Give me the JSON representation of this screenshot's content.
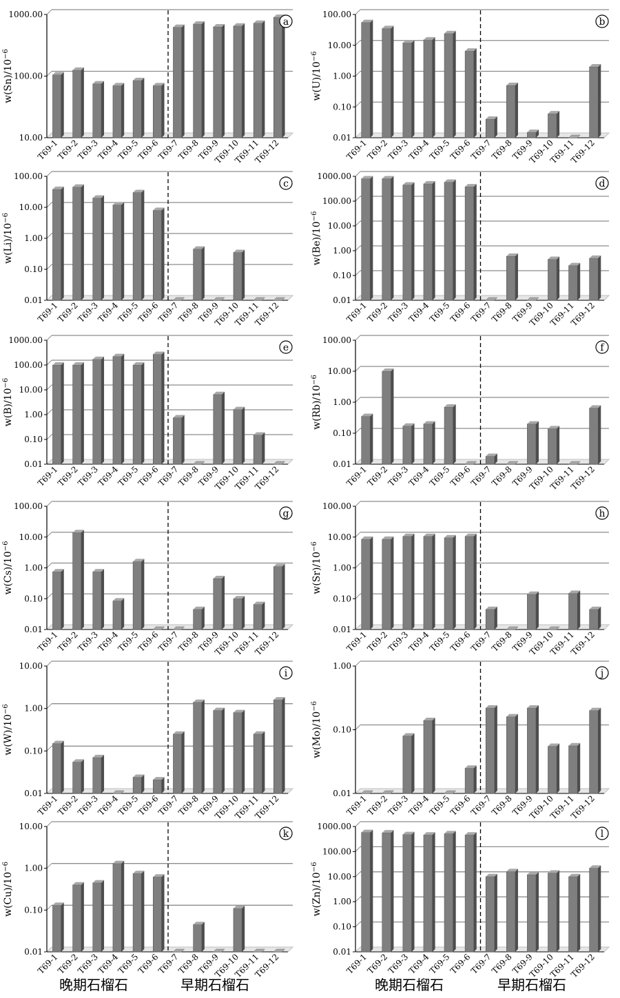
{
  "colors": {
    "bar_front": "#7f7f7f",
    "bar_side": "#4d4d4d",
    "bar_top": "#a8a8a8",
    "floor": "#bfbfbf",
    "gridline": "#8c8c8c",
    "axis": "#000000"
  },
  "footer": {
    "left_late": "晚期石榴石",
    "left_early": "早期石榴石",
    "right_late": "晚期石榴石",
    "right_early": "早期石榴石"
  },
  "chart_data": [
    {
      "type": "bar",
      "panel": "a",
      "ylabel": "w(Sn)/10^-6",
      "yscale": "log",
      "ylim": [
        10,
        1000
      ],
      "ytick_labels": [
        "10.00",
        "100.00",
        "1000.00"
      ],
      "grid": true,
      "categories": [
        "T69-1",
        "T69-2",
        "T69-3",
        "T69-4",
        "T69-5",
        "T69-6",
        "T69-7",
        "T69-8",
        "T69-9",
        "T69-10",
        "T69-11",
        "T69-12"
      ],
      "values": [
        105,
        125,
        75,
        70,
        85,
        70,
        620,
        700,
        630,
        650,
        720,
        900
      ],
      "divider_after": 6
    },
    {
      "type": "bar",
      "panel": "b",
      "ylabel": "w(U)/10^-6",
      "yscale": "log",
      "ylim": [
        0.01,
        100
      ],
      "ytick_labels": [
        "0.01",
        "0.10",
        "1.00",
        "10.00",
        "100.00"
      ],
      "grid": true,
      "categories": [
        "T69-1",
        "T69-2",
        "T69-3",
        "T69-4",
        "T69-5",
        "T69-6",
        "T69-7",
        "T69-8",
        "T69-9",
        "T69-10",
        "T69-11",
        "T69-12"
      ],
      "values": [
        55,
        35,
        12,
        15,
        24,
        6.5,
        0.04,
        0.5,
        0.015,
        0.06,
        0.01,
        2.0
      ],
      "divider_after": 6
    },
    {
      "type": "bar",
      "panel": "c",
      "ylabel": "w(Li)/10^-6",
      "yscale": "log",
      "ylim": [
        0.01,
        100
      ],
      "ytick_labels": [
        "0.01",
        "0.10",
        "1.00",
        "10.00",
        "100.00"
      ],
      "grid": true,
      "categories": [
        "T69-1",
        "T69-2",
        "T69-3",
        "T69-4",
        "T69-5",
        "T69-6",
        "T69-7",
        "T69-8",
        "T69-9",
        "T69-10",
        "T69-11",
        "T69-12"
      ],
      "values": [
        38,
        45,
        20,
        12,
        30,
        8,
        0.01,
        0.45,
        0.01,
        0.35,
        0.01,
        0.01
      ],
      "divider_after": 6
    },
    {
      "type": "bar",
      "panel": "d",
      "ylabel": "w(Be)/10^-6",
      "yscale": "log",
      "ylim": [
        0.01,
        1000
      ],
      "ytick_labels": [
        "0.01",
        "0.10",
        "1.00",
        "10.00",
        "100.00",
        "1000.00"
      ],
      "grid": true,
      "categories": [
        "T69-1",
        "T69-2",
        "T69-3",
        "T69-4",
        "T69-5",
        "T69-6",
        "T69-7",
        "T69-8",
        "T69-9",
        "T69-10",
        "T69-11",
        "T69-12"
      ],
      "values": [
        800,
        800,
        450,
        500,
        580,
        380,
        0.01,
        0.6,
        0.01,
        0.45,
        0.25,
        0.5
      ],
      "divider_after": 6
    },
    {
      "type": "bar",
      "panel": "e",
      "ylabel": "w(B)/10^-6",
      "yscale": "log",
      "ylim": [
        0.01,
        1000
      ],
      "ytick_labels": [
        "0.01",
        "0.10",
        "1.00",
        "10.00",
        "100.00",
        "1000.00"
      ],
      "grid": true,
      "categories": [
        "T69-1",
        "T69-2",
        "T69-3",
        "T69-4",
        "T69-5",
        "T69-6",
        "T69-7",
        "T69-8",
        "T69-9",
        "T69-10",
        "T69-11",
        "T69-12"
      ],
      "values": [
        100,
        100,
        170,
        220,
        100,
        270,
        0.75,
        0.01,
        6.5,
        1.6,
        0.15,
        0.01
      ],
      "divider_after": 6
    },
    {
      "type": "bar",
      "panel": "f",
      "ylabel": "w(Rb)/10^-6",
      "yscale": "log",
      "ylim": [
        0.01,
        100
      ],
      "ytick_labels": [
        "0.01",
        "0.10",
        "1.00",
        "10.00",
        "100.00"
      ],
      "grid": true,
      "categories": [
        "T69-1",
        "T69-2",
        "T69-3",
        "T69-4",
        "T69-5",
        "T69-6",
        "T69-7",
        "T69-8",
        "T69-9",
        "T69-10",
        "T69-11",
        "T69-12"
      ],
      "values": [
        0.35,
        10,
        0.17,
        0.2,
        0.7,
        0.01,
        0.018,
        0.01,
        0.2,
        0.14,
        0.01,
        0.65
      ],
      "divider_after": 6
    },
    {
      "type": "bar",
      "panel": "g",
      "ylabel": "w(Cs)/10^-6",
      "yscale": "log",
      "ylim": [
        0.01,
        100
      ],
      "ytick_labels": [
        "0.01",
        "0.10",
        "1.00",
        "10.00",
        "100.00"
      ],
      "grid": true,
      "categories": [
        "T69-1",
        "T69-2",
        "T69-3",
        "T69-4",
        "T69-5",
        "T69-6",
        "T69-7",
        "T69-8",
        "T69-9",
        "T69-10",
        "T69-11",
        "T69-12"
      ],
      "values": [
        0.75,
        14,
        0.75,
        0.085,
        1.6,
        0.01,
        0.01,
        0.045,
        0.45,
        0.1,
        0.065,
        1.1
      ],
      "divider_after": 6
    },
    {
      "type": "bar",
      "panel": "h",
      "ylabel": "w(Sr)/10^-6",
      "yscale": "log",
      "ylim": [
        0.01,
        100
      ],
      "ytick_labels": [
        "0.01",
        "0.10",
        "1.00",
        "10.00",
        "100.00"
      ],
      "grid": true,
      "categories": [
        "T69-1",
        "T69-2",
        "T69-3",
        "T69-4",
        "T69-5",
        "T69-6",
        "T69-7",
        "T69-8",
        "T69-9",
        "T69-10",
        "T69-11",
        "T69-12"
      ],
      "values": [
        8.5,
        8.5,
        10.5,
        10.5,
        9.5,
        10.5,
        0.045,
        0.01,
        0.14,
        0.01,
        0.15,
        0.045
      ],
      "divider_after": 6
    },
    {
      "type": "bar",
      "panel": "i",
      "ylabel": "w(W)/10^-6",
      "yscale": "log",
      "ylim": [
        0.01,
        10
      ],
      "ytick_labels": [
        "0.01",
        "0.10",
        "1.00",
        "10.00"
      ],
      "grid": true,
      "categories": [
        "T69-1",
        "T69-2",
        "T69-3",
        "T69-4",
        "T69-5",
        "T69-6",
        "T69-7",
        "T69-8",
        "T69-9",
        "T69-10",
        "T69-11",
        "T69-12"
      ],
      "values": [
        0.15,
        0.055,
        0.07,
        0.01,
        0.024,
        0.021,
        0.25,
        1.4,
        0.9,
        0.8,
        0.25,
        1.6
      ],
      "divider_after": 6
    },
    {
      "type": "bar",
      "panel": "j",
      "ylabel": "w(Mo)/10^-6",
      "yscale": "log",
      "ylim": [
        0.01,
        1
      ],
      "ytick_labels": [
        "0.01",
        "0.10",
        "1.00"
      ],
      "grid": true,
      "categories": [
        "T69-1",
        "T69-2",
        "T69-3",
        "T69-4",
        "T69-5",
        "T69-6",
        "T69-7",
        "T69-8",
        "T69-9",
        "T69-10",
        "T69-11",
        "T69-12"
      ],
      "values": [
        0.01,
        0.01,
        0.08,
        0.14,
        0.01,
        0.025,
        0.22,
        0.16,
        0.22,
        0.055,
        0.056,
        0.2
      ],
      "divider_after": 6
    },
    {
      "type": "bar",
      "panel": "k",
      "ylabel": "w(Cu)/10^-6",
      "yscale": "log",
      "ylim": [
        0.01,
        10
      ],
      "ytick_labels": [
        "0.01",
        "0.10",
        "1.00",
        "10.00"
      ],
      "grid": true,
      "categories": [
        "T69-1",
        "T69-2",
        "T69-3",
        "T69-4",
        "T69-5",
        "T69-6",
        "T69-7",
        "T69-8",
        "T69-9",
        "T69-10",
        "T69-11",
        "T69-12"
      ],
      "values": [
        0.13,
        0.4,
        0.45,
        1.3,
        0.75,
        0.62,
        0.01,
        0.045,
        0.01,
        0.11,
        0.01,
        0.01
      ],
      "divider_after": 6
    },
    {
      "type": "bar",
      "panel": "l",
      "ylabel": "w(Zn)/10^-6",
      "yscale": "log",
      "ylim": [
        0.01,
        1000
      ],
      "ytick_labels": [
        "0.01",
        "0.10",
        "1.00",
        "10.00",
        "100.00",
        "1000.00"
      ],
      "grid": true,
      "categories": [
        "T69-1",
        "T69-2",
        "T69-3",
        "T69-4",
        "T69-5",
        "T69-6",
        "T69-7",
        "T69-8",
        "T69-9",
        "T69-10",
        "T69-11",
        "T69-12"
      ],
      "values": [
        580,
        560,
        480,
        460,
        520,
        460,
        10,
        16,
        12,
        14,
        10,
        22
      ],
      "divider_after": 6
    }
  ]
}
